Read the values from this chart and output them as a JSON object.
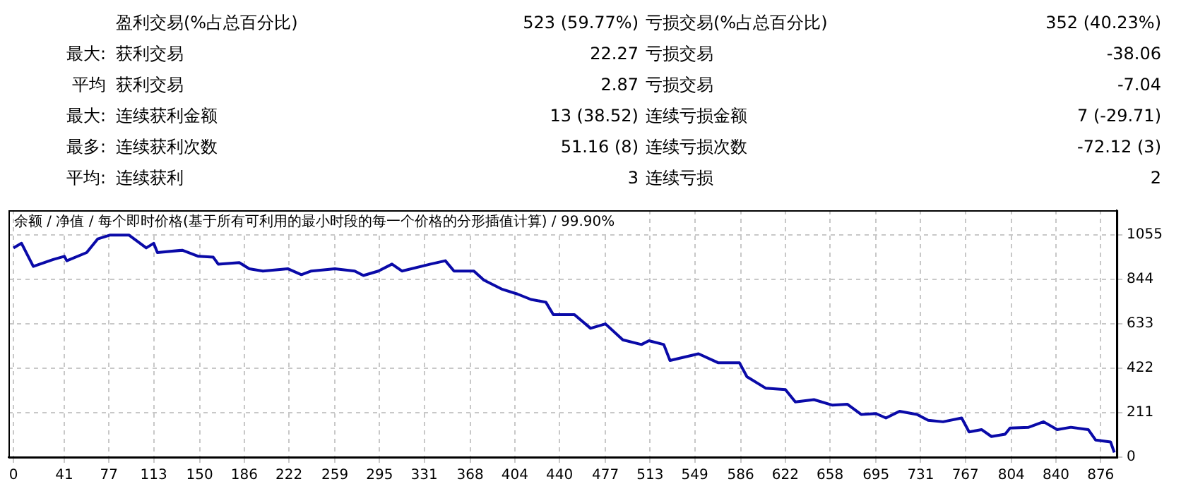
{
  "chart_data": {
    "type": "line",
    "title": "余额 / 净值 / 每个即时价格(基于所有可利用的最小时段的每一个价格的分形插值计算) / 99.90%",
    "annotations": [
      "盈利交易(%占总百分比)",
      "523 (59.77%)",
      "亏损交易(%占总百分比)",
      "352 (40.23%)",
      "最大:",
      "获利交易",
      "22.27",
      "亏损交易",
      "-38.06",
      "平均",
      "获利交易",
      "2.87",
      "亏损交易",
      "-7.04",
      "最大:",
      "连续获利金额",
      "13 (38.52)",
      "连续亏损金额",
      "7 (-29.71)",
      "最多:",
      "连续获利次数",
      "51.16 (8)",
      "连续亏损次数",
      "-72.12 (3)",
      "平均:",
      "连续获利",
      "3",
      "连续亏损",
      "2"
    ],
    "x": [
      0,
      6.5,
      16,
      32,
      41,
      43,
      59,
      68,
      78,
      93,
      107,
      113,
      116,
      136,
      149,
      161,
      165,
      182,
      190,
      201,
      221,
      232,
      240,
      259,
      275,
      282,
      294,
      305,
      313,
      336,
      348,
      355,
      371,
      379,
      394,
      406,
      417,
      429,
      435,
      452,
      465,
      477,
      491,
      506,
      512,
      524,
      529,
      552,
      568,
      585,
      591,
      606,
      622,
      630,
      645,
      660,
      672,
      683,
      695,
      703,
      714,
      728,
      737,
      749,
      764,
      770,
      780,
      788,
      799,
      803,
      818,
      830,
      841,
      852,
      866,
      872,
      884,
      887
    ],
    "series": [
      {
        "color": "#0a0aa8",
        "values": [
          994,
          1016,
          906,
          939,
          954,
          933,
          972,
          1037,
          1055,
          1055,
          994,
          1016,
          972,
          983,
          954,
          950,
          917,
          924,
          895,
          884,
          895,
          867,
          884,
          895,
          884,
          863,
          884,
          917,
          884,
          917,
          933,
          884,
          884,
          841,
          797,
          775,
          749,
          736,
          677,
          677,
          612,
          633,
          557,
          535,
          553,
          535,
          459,
          491,
          448,
          448,
          382,
          328,
          321,
          262,
          273,
          247,
          251,
          203,
          207,
          186,
          218,
          203,
          175,
          168,
          186,
          120,
          131,
          98,
          109,
          138,
          142,
          168,
          131,
          142,
          131,
          81,
          72,
          22
        ]
      }
    ],
    "xlim": [
      -4,
      889
    ],
    "ylim": [
      0,
      1173
    ],
    "xticks": [
      0,
      41,
      77,
      113,
      150,
      186,
      222,
      259,
      295,
      331,
      368,
      404,
      440,
      477,
      513,
      549,
      586,
      622,
      658,
      695,
      731,
      767,
      804,
      840,
      876
    ],
    "yticks": [
      0,
      211,
      422,
      633,
      844,
      1055
    ],
    "grid": true,
    "legend": false,
    "marker": "none",
    "line_style": "solid"
  }
}
